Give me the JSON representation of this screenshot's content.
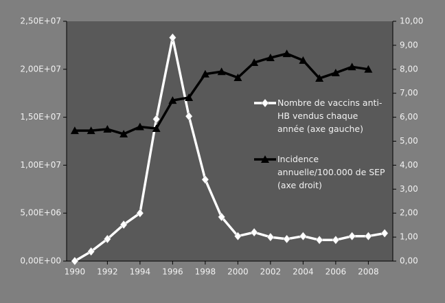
{
  "chart_data": {
    "type": "line",
    "x": [
      1990,
      1991,
      1992,
      1993,
      1994,
      1995,
      1996,
      1997,
      1998,
      1999,
      2000,
      2001,
      2002,
      2003,
      2004,
      2005,
      2006,
      2007,
      2008,
      2009
    ],
    "series": [
      {
        "name": "Nombre de vaccins anti-HB vendus chaque année (axe gauche)",
        "color": "#ffffff",
        "marker": "diamond",
        "values": [
          0,
          1000000,
          2300000,
          3800000,
          5000000,
          14800000,
          23300000,
          15100000,
          8500000,
          4600000,
          2600000,
          3000000,
          2500000,
          2300000,
          2600000,
          2200000,
          2200000,
          2600000,
          2600000,
          2900000
        ]
      },
      {
        "name": "Incidence annuelle/100.000 de SEP (axe droit)",
        "color": "#000000",
        "marker": "triangle",
        "axis": "y2",
        "values": [
          5.44,
          5.44,
          5.5,
          5.3,
          5.6,
          5.53,
          6.7,
          6.82,
          7.8,
          7.9,
          7.65,
          8.28,
          8.48,
          8.65,
          8.37,
          7.62,
          7.85,
          8.1,
          8.0,
          null
        ]
      }
    ],
    "xlim": [
      1989.5,
      2009.5
    ],
    "xticks": [
      1990,
      1992,
      1994,
      1996,
      1998,
      2000,
      2002,
      2004,
      2006,
      2008
    ],
    "ylim": [
      0,
      25000000
    ],
    "yticks": [
      {
        "value": 0,
        "label": "0,00E+00"
      },
      {
        "value": 5000000,
        "label": "5,00E+06"
      },
      {
        "value": 10000000,
        "label": "1,00E+07"
      },
      {
        "value": 15000000,
        "label": "1,50E+07"
      },
      {
        "value": 20000000,
        "label": "2,00E+07"
      },
      {
        "value": 25000000,
        "label": "2,50E+07"
      }
    ],
    "y2lim": [
      0,
      10
    ],
    "y2ticks": [
      {
        "value": 0,
        "label": "0,00"
      },
      {
        "value": 1,
        "label": "1,00"
      },
      {
        "value": 2,
        "label": "2,00"
      },
      {
        "value": 3,
        "label": "3,00"
      },
      {
        "value": 4,
        "label": "4,00"
      },
      {
        "value": 5,
        "label": "5,00"
      },
      {
        "value": 6,
        "label": "6,00"
      },
      {
        "value": 7,
        "label": "7,00"
      },
      {
        "value": 8,
        "label": "8,00"
      },
      {
        "value": 9,
        "label": "9,00"
      },
      {
        "value": 10,
        "label": "10,00"
      }
    ],
    "grid": false
  }
}
